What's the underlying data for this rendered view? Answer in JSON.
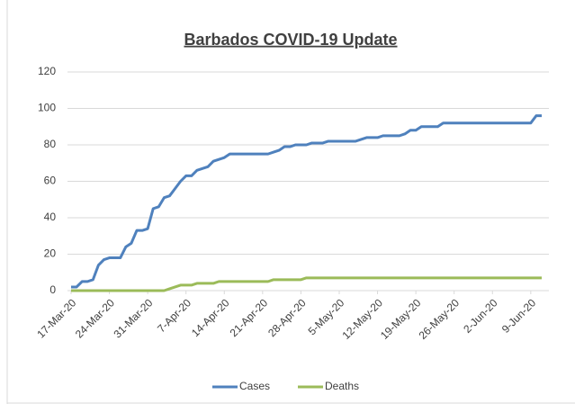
{
  "chart_data": {
    "type": "line",
    "title": "Barbados COVID-19 Update",
    "categories": [
      "17-Mar-20",
      null,
      null,
      null,
      null,
      null,
      null,
      "24-Mar-20",
      null,
      null,
      null,
      null,
      null,
      null,
      "31-Mar-20",
      null,
      null,
      null,
      null,
      null,
      null,
      "7-Apr-20",
      null,
      null,
      null,
      null,
      null,
      null,
      "14-Apr-20",
      null,
      null,
      null,
      null,
      null,
      null,
      "21-Apr-20",
      null,
      null,
      null,
      null,
      null,
      null,
      "28-Apr-20",
      null,
      null,
      null,
      null,
      null,
      null,
      "5-May-20",
      null,
      null,
      null,
      null,
      null,
      null,
      "12-May-20",
      null,
      null,
      null,
      null,
      null,
      null,
      "19-May-20",
      null,
      null,
      null,
      null,
      null,
      null,
      "26-May-20",
      null,
      null,
      null,
      null,
      null,
      null,
      "2-Jun-20",
      null,
      null,
      null,
      null,
      null,
      null,
      "9-Jun-20",
      null,
      null
    ],
    "series": [
      {
        "name": "Cases",
        "color": "#4f81bd",
        "values": [
          2,
          2,
          5,
          5,
          6,
          14,
          17,
          18,
          18,
          18,
          24,
          26,
          33,
          33,
          34,
          45,
          46,
          51,
          52,
          56,
          60,
          63,
          63,
          66,
          67,
          68,
          71,
          72,
          73,
          75,
          75,
          75,
          75,
          75,
          75,
          75,
          75,
          76,
          77,
          79,
          79,
          80,
          80,
          80,
          81,
          81,
          81,
          82,
          82,
          82,
          82,
          82,
          82,
          83,
          84,
          84,
          84,
          85,
          85,
          85,
          85,
          86,
          88,
          88,
          90,
          90,
          90,
          90,
          92,
          92,
          92,
          92,
          92,
          92,
          92,
          92,
          92,
          92,
          92,
          92,
          92,
          92,
          92,
          92,
          92,
          96,
          96
        ]
      },
      {
        "name": "Deaths",
        "color": "#9bbb59",
        "values": [
          0,
          0,
          0,
          0,
          0,
          0,
          0,
          0,
          0,
          0,
          0,
          0,
          0,
          0,
          0,
          0,
          0,
          0,
          1,
          2,
          3,
          3,
          3,
          4,
          4,
          4,
          4,
          5,
          5,
          5,
          5,
          5,
          5,
          5,
          5,
          5,
          5,
          6,
          6,
          6,
          6,
          6,
          6,
          7,
          7,
          7,
          7,
          7,
          7,
          7,
          7,
          7,
          7,
          7,
          7,
          7,
          7,
          7,
          7,
          7,
          7,
          7,
          7,
          7,
          7,
          7,
          7,
          7,
          7,
          7,
          7,
          7,
          7,
          7,
          7,
          7,
          7,
          7,
          7,
          7,
          7,
          7,
          7,
          7,
          7,
          7,
          7
        ]
      }
    ],
    "ylim": [
      0,
      120
    ],
    "yticks": [
      0,
      20,
      40,
      60,
      80,
      100,
      120
    ],
    "grid": true,
    "legend": "bottom"
  }
}
